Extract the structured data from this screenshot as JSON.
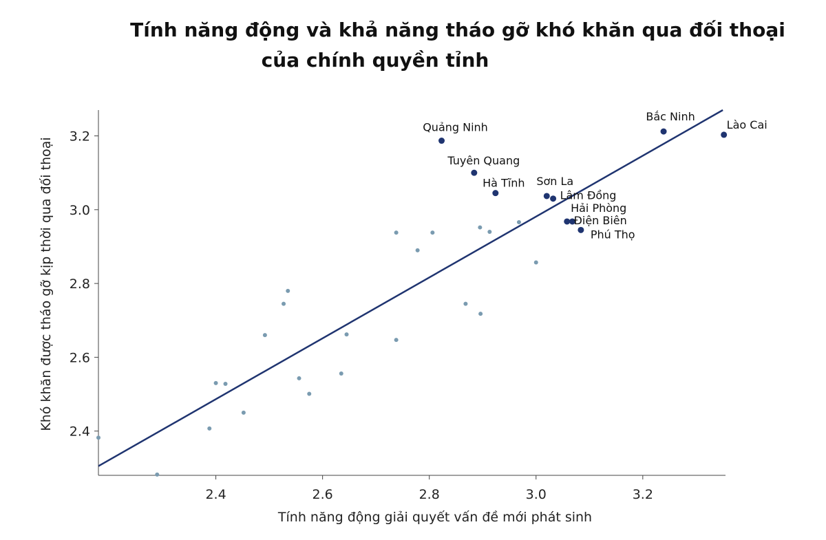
{
  "title_line1": "Tính năng động và khả năng tháo gỡ khó khăn qua đối thoại",
  "title_line2": "của chính quyền tỉnh",
  "chart_data": {
    "type": "scatter",
    "xlabel": "Tính năng động giải quyết vấn đề mới phát sinh",
    "ylabel": "Khó khăn được tháo gỡ kịp thời qua đối thoại",
    "xlim": [
      2.18,
      3.355
    ],
    "ylim": [
      2.28,
      3.27
    ],
    "xticks": [
      "2.4",
      "2.6",
      "2.8",
      "3.0",
      "3.2"
    ],
    "yticks": [
      "2.4",
      "2.6",
      "2.8",
      "3.0",
      "3.2"
    ],
    "grid": false,
    "colors": {
      "highlight": "#1f3470",
      "other": "#7a9bb0",
      "fit_line": "#1f3470"
    },
    "fit_line": {
      "x": [
        2.18,
        3.35
      ],
      "y": [
        2.305,
        3.27
      ]
    },
    "highlighted": [
      {
        "label": "Quảng Ninh",
        "x": 2.823,
        "y": 3.187
      },
      {
        "label": "Bắc Ninh",
        "x": 3.239,
        "y": 3.212
      },
      {
        "label": "Lào Cai",
        "x": 3.352,
        "y": 3.203
      },
      {
        "label": "Tuyên Quang",
        "x": 2.884,
        "y": 3.1
      },
      {
        "label": "Hà Tĩnh",
        "x": 2.924,
        "y": 3.045
      },
      {
        "label": "Sơn La",
        "x": 3.02,
        "y": 3.037
      },
      {
        "label": "Lâm Đồng",
        "x": 3.032,
        "y": 3.03
      },
      {
        "label": "Hải Phòng",
        "x": 3.058,
        "y": 2.968
      },
      {
        "label": "Điện Biên",
        "x": 3.068,
        "y": 2.968
      },
      {
        "label": "Phú Thọ",
        "x": 3.084,
        "y": 2.945
      }
    ],
    "others": [
      {
        "x": 2.18,
        "y": 2.382
      },
      {
        "x": 2.29,
        "y": 2.282
      },
      {
        "x": 2.388,
        "y": 2.407
      },
      {
        "x": 2.4,
        "y": 2.53
      },
      {
        "x": 2.418,
        "y": 2.528
      },
      {
        "x": 2.452,
        "y": 2.45
      },
      {
        "x": 2.492,
        "y": 2.66
      },
      {
        "x": 2.527,
        "y": 2.745
      },
      {
        "x": 2.535,
        "y": 2.78
      },
      {
        "x": 2.556,
        "y": 2.543
      },
      {
        "x": 2.575,
        "y": 2.501
      },
      {
        "x": 2.635,
        "y": 2.556
      },
      {
        "x": 2.645,
        "y": 2.662
      },
      {
        "x": 2.738,
        "y": 2.647
      },
      {
        "x": 2.738,
        "y": 2.938
      },
      {
        "x": 2.778,
        "y": 2.89
      },
      {
        "x": 2.806,
        "y": 2.938
      },
      {
        "x": 2.868,
        "y": 2.745
      },
      {
        "x": 2.895,
        "y": 2.952
      },
      {
        "x": 2.896,
        "y": 2.718
      },
      {
        "x": 2.913,
        "y": 2.94
      },
      {
        "x": 2.968,
        "y": 2.966
      },
      {
        "x": 3.0,
        "y": 2.857
      }
    ]
  }
}
